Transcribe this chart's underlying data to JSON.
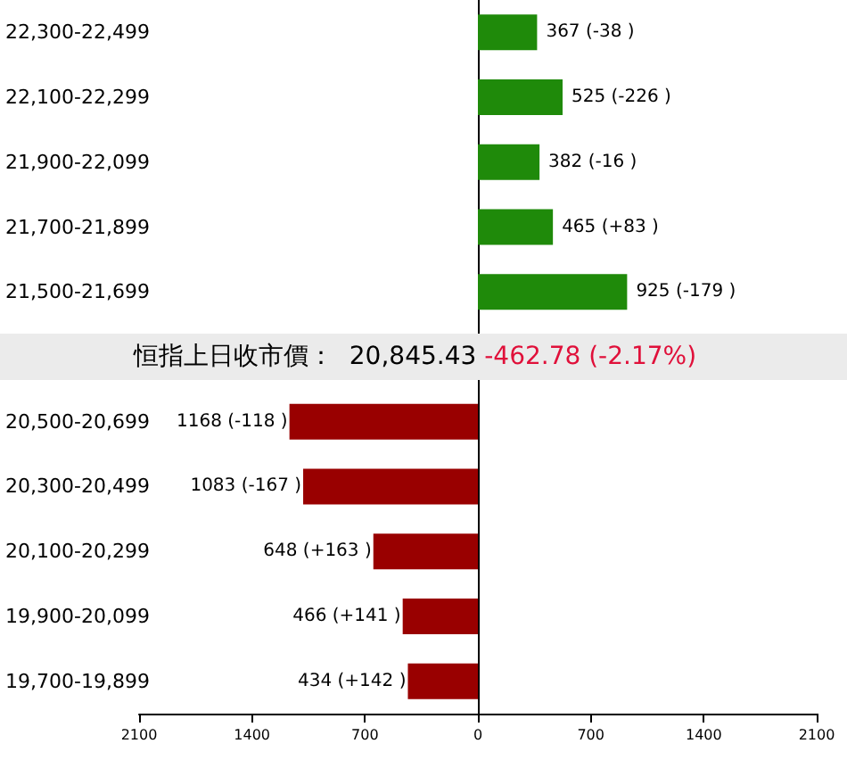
{
  "chart_data": {
    "type": "bar",
    "orientation": "horizontal",
    "categories": [
      "22,300-22,499",
      "22,100-22,299",
      "21,900-22,099",
      "21,700-21,899",
      "21,500-21,699",
      null,
      "20,500-20,699",
      "20,300-20,499",
      "20,100-20,299",
      "19,900-20,099",
      "19,700-19,899"
    ],
    "values": [
      367,
      525,
      382,
      465,
      925,
      null,
      1168,
      1083,
      648,
      466,
      434
    ],
    "base": [
      0,
      0,
      0,
      0,
      0,
      null,
      -1168,
      -1083,
      -648,
      -466,
      -434
    ],
    "colors": [
      "#1f8a0a",
      "#1f8a0a",
      "#1f8a0a",
      "#1f8a0a",
      "#1f8a0a",
      null,
      "#990000",
      "#990000",
      "#990000",
      "#990000",
      "#990000"
    ],
    "value_labels": [
      "367 (-38 )",
      "525 (-226 )",
      "382 (-16 )",
      "465 (+83 )",
      "925 (-179 )",
      null,
      "1168 (-118 )",
      "1083 (-167 )",
      "648 (+163 )",
      "466 (+141 )",
      "434 (+142 )"
    ],
    "xlim": [
      -2100,
      2100
    ],
    "xticks": [
      {
        "value": -2100,
        "label": "2100"
      },
      {
        "value": -1400,
        "label": "1400"
      },
      {
        "value": -700,
        "label": "700"
      },
      0,
      700,
      1400,
      2100
    ],
    "annotations": [
      "恒指上日收市價：  20,845.43",
      "-462.78 (-2.17%)"
    ]
  }
}
